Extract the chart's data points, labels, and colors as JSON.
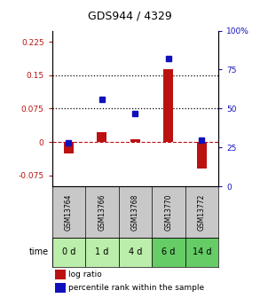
{
  "title": "GDS944 / 4329",
  "samples": [
    "GSM13764",
    "GSM13766",
    "GSM13768",
    "GSM13770",
    "GSM13772"
  ],
  "time_labels": [
    "0 d",
    "1 d",
    "4 d",
    "6 d",
    "14 d"
  ],
  "log_ratio": [
    -0.025,
    0.022,
    0.006,
    0.163,
    -0.06
  ],
  "percentile_rank": [
    0.28,
    0.56,
    0.47,
    0.82,
    0.3
  ],
  "ylim_left": [
    -0.1,
    0.25
  ],
  "ylim_right": [
    0,
    1.0
  ],
  "yticks_left": [
    -0.075,
    0,
    0.075,
    0.15,
    0.225
  ],
  "yticks_left_labels": [
    "-0.075",
    "0",
    "0.075",
    "0.15",
    "0.225"
  ],
  "yticks_right": [
    0,
    0.25,
    0.5,
    0.75,
    1.0
  ],
  "yticks_right_labels": [
    "0",
    "25",
    "50",
    "75",
    "100%"
  ],
  "hlines": [
    0.075,
    0.15
  ],
  "bar_color_red": "#bb1111",
  "bar_color_blue": "#1111bb",
  "bg_color_samples": "#c8c8c8",
  "bg_color_time_light": "#bbeeaa",
  "bg_color_time_dark": "#66cc66",
  "legend_red": "log ratio",
  "legend_blue": "percentile rank within the sample",
  "time_label": "time",
  "bar_width": 0.3
}
